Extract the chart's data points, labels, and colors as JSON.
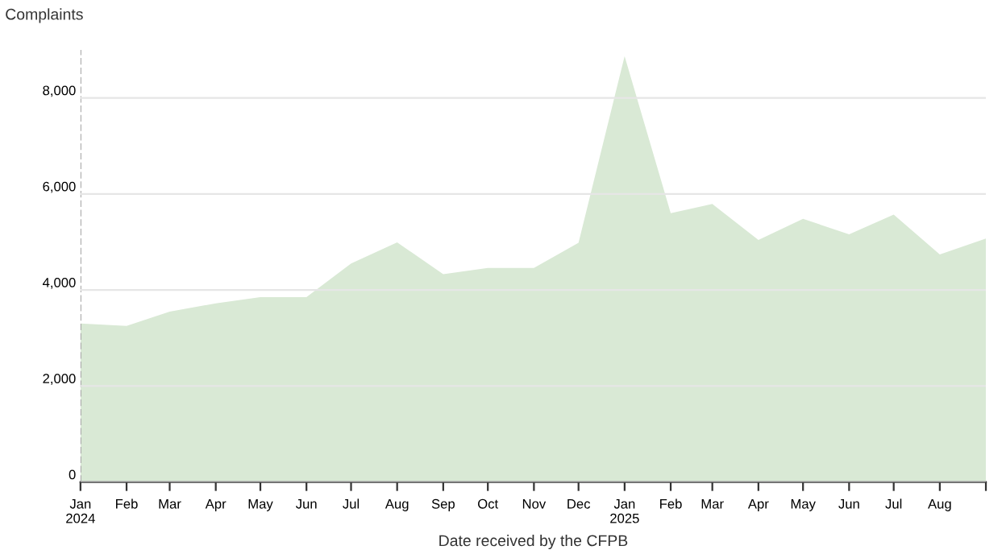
{
  "chart_data": {
    "type": "area",
    "ylabel": "Complaints",
    "xlabel": "Date received by the CFPB",
    "x": [
      "2024-01",
      "2024-02",
      "2024-03",
      "2024-04",
      "2024-05",
      "2024-06",
      "2024-07",
      "2024-08",
      "2024-09",
      "2024-10",
      "2024-11",
      "2024-12",
      "2025-01",
      "2025-02",
      "2025-03",
      "2025-04",
      "2025-05",
      "2025-06",
      "2025-07",
      "2025-08",
      "2025-09"
    ],
    "series": [
      {
        "color": "#d9e9d5",
        "values": [
          3300,
          3250,
          3550,
          3720,
          3850,
          3850,
          4550,
          4990,
          4330,
          4460,
          4460,
          4980,
          8870,
          5600,
          5790,
          5040,
          5480,
          5160,
          5570,
          4740,
          5070
        ]
      }
    ],
    "xlim": [
      "2024-01",
      "2025-09"
    ],
    "xticks": [
      {
        "value": "2024-01",
        "label": "Jan\n2024"
      },
      {
        "value": "2024-02",
        "label": "Feb"
      },
      {
        "value": "2024-03",
        "label": "Mar"
      },
      {
        "value": "2024-04",
        "label": "Apr"
      },
      {
        "value": "2024-05",
        "label": "May"
      },
      {
        "value": "2024-06",
        "label": "Jun"
      },
      {
        "value": "2024-07",
        "label": "Jul"
      },
      {
        "value": "2024-08",
        "label": "Aug"
      },
      {
        "value": "2024-09",
        "label": "Sep"
      },
      {
        "value": "2024-10",
        "label": "Oct"
      },
      {
        "value": "2024-11",
        "label": "Nov"
      },
      {
        "value": "2024-12",
        "label": "Dec"
      },
      {
        "value": "2025-01",
        "label": "Jan\n2025"
      },
      {
        "value": "2025-02",
        "label": "Feb"
      },
      {
        "value": "2025-03",
        "label": "Mar"
      },
      {
        "value": "2025-04",
        "label": "Apr"
      },
      {
        "value": "2025-05",
        "label": "May"
      },
      {
        "value": "2025-06",
        "label": "Jun"
      },
      {
        "value": "2025-07",
        "label": "Jul"
      },
      {
        "value": "2025-08",
        "label": "Aug"
      },
      {
        "value": "2025-09",
        "label": null
      }
    ],
    "ylim": [
      0,
      9000
    ],
    "yticks": [
      0,
      {
        "value": 2000,
        "label": "2,000"
      },
      {
        "value": 4000,
        "label": "4,000"
      },
      {
        "value": 6000,
        "label": "6,000"
      },
      {
        "value": 8000,
        "label": "8,000"
      }
    ],
    "grid": "y",
    "ref_lines": [
      {
        "axis": "x",
        "value": "2024-01",
        "color": "#aaaaaa",
        "line_style": "dashed"
      }
    ]
  }
}
